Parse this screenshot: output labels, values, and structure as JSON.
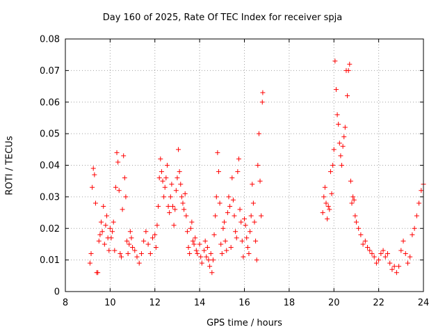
{
  "chart_data": {
    "type": "scatter",
    "title": "Day 160 of 2025, Rate Of TEC Index for receiver spja",
    "xlabel": "GPS time / hours",
    "ylabel": "ROTI / TECUs",
    "xlim": [
      8,
      24
    ],
    "ylim": [
      0,
      0.08
    ],
    "xticks": [
      8,
      10,
      12,
      14,
      16,
      18,
      20,
      22,
      24
    ],
    "yticks": [
      0,
      0.01,
      0.02,
      0.03,
      0.04,
      0.05,
      0.06,
      0.07,
      0.08
    ],
    "xtick_labels": [
      "8",
      "10",
      "12",
      "14",
      "16",
      "18",
      "20",
      "22",
      "24"
    ],
    "ytick_labels": [
      "0",
      "0.01",
      "0.02",
      "0.03",
      "0.04",
      "0.05",
      "0.06",
      "0.07",
      "0.08"
    ],
    "grid": true,
    "marker": "+",
    "color": "#ff0000",
    "series": [
      {
        "name": "ROTI",
        "points": [
          [
            9.1,
            0.009
          ],
          [
            9.15,
            0.012
          ],
          [
            9.2,
            0.033
          ],
          [
            9.25,
            0.039
          ],
          [
            9.3,
            0.037
          ],
          [
            9.35,
            0.028
          ],
          [
            9.4,
            0.006
          ],
          [
            9.45,
            0.006
          ],
          [
            9.5,
            0.016
          ],
          [
            9.55,
            0.018
          ],
          [
            9.6,
            0.022
          ],
          [
            9.65,
            0.019
          ],
          [
            9.7,
            0.027
          ],
          [
            9.75,
            0.015
          ],
          [
            9.8,
            0.021
          ],
          [
            9.85,
            0.024
          ],
          [
            9.9,
            0.017
          ],
          [
            9.95,
            0.013
          ],
          [
            10.0,
            0.02
          ],
          [
            10.05,
            0.017
          ],
          [
            10.1,
            0.019
          ],
          [
            10.15,
            0.022
          ],
          [
            10.2,
            0.013
          ],
          [
            10.25,
            0.033
          ],
          [
            10.3,
            0.044
          ],
          [
            10.35,
            0.041
          ],
          [
            10.4,
            0.032
          ],
          [
            10.45,
            0.012
          ],
          [
            10.5,
            0.011
          ],
          [
            10.55,
            0.026
          ],
          [
            10.6,
            0.043
          ],
          [
            10.65,
            0.036
          ],
          [
            10.7,
            0.03
          ],
          [
            10.75,
            0.016
          ],
          [
            10.8,
            0.012
          ],
          [
            10.85,
            0.015
          ],
          [
            10.9,
            0.019
          ],
          [
            10.95,
            0.017
          ],
          [
            11.0,
            0.014
          ],
          [
            11.1,
            0.013
          ],
          [
            11.2,
            0.011
          ],
          [
            11.3,
            0.009
          ],
          [
            11.4,
            0.012
          ],
          [
            11.5,
            0.016
          ],
          [
            11.6,
            0.019
          ],
          [
            11.7,
            0.015
          ],
          [
            11.8,
            0.012
          ],
          [
            11.9,
            0.017
          ],
          [
            12.0,
            0.018
          ],
          [
            12.05,
            0.014
          ],
          [
            12.1,
            0.021
          ],
          [
            12.15,
            0.027
          ],
          [
            12.2,
            0.036
          ],
          [
            12.25,
            0.042
          ],
          [
            12.3,
            0.038
          ],
          [
            12.35,
            0.035
          ],
          [
            12.4,
            0.03
          ],
          [
            12.45,
            0.033
          ],
          [
            12.5,
            0.036
          ],
          [
            12.55,
            0.04
          ],
          [
            12.6,
            0.027
          ],
          [
            12.65,
            0.025
          ],
          [
            12.7,
            0.03
          ],
          [
            12.75,
            0.034
          ],
          [
            12.8,
            0.027
          ],
          [
            12.85,
            0.021
          ],
          [
            12.9,
            0.026
          ],
          [
            12.95,
            0.032
          ],
          [
            13.0,
            0.036
          ],
          [
            13.05,
            0.045
          ],
          [
            13.1,
            0.038
          ],
          [
            13.15,
            0.034
          ],
          [
            13.2,
            0.03
          ],
          [
            13.25,
            0.028
          ],
          [
            13.3,
            0.026
          ],
          [
            13.35,
            0.031
          ],
          [
            13.4,
            0.024
          ],
          [
            13.45,
            0.019
          ],
          [
            13.5,
            0.014
          ],
          [
            13.55,
            0.012
          ],
          [
            13.6,
            0.02
          ],
          [
            13.65,
            0.022
          ],
          [
            13.7,
            0.016
          ],
          [
            13.75,
            0.015
          ],
          [
            13.8,
            0.017
          ],
          [
            13.85,
            0.013
          ],
          [
            13.9,
            0.012
          ],
          [
            14.0,
            0.015
          ],
          [
            14.05,
            0.011
          ],
          [
            14.1,
            0.009
          ],
          [
            14.2,
            0.013
          ],
          [
            14.25,
            0.016
          ],
          [
            14.3,
            0.011
          ],
          [
            14.35,
            0.014
          ],
          [
            14.4,
            0.01
          ],
          [
            14.45,
            0.008
          ],
          [
            14.5,
            0.012
          ],
          [
            14.55,
            0.006
          ],
          [
            14.6,
            0.01
          ],
          [
            14.65,
            0.018
          ],
          [
            14.7,
            0.024
          ],
          [
            14.75,
            0.03
          ],
          [
            14.8,
            0.044
          ],
          [
            14.85,
            0.038
          ],
          [
            14.9,
            0.028
          ],
          [
            14.95,
            0.015
          ],
          [
            15.0,
            0.012
          ],
          [
            15.05,
            0.02
          ],
          [
            15.1,
            0.022
          ],
          [
            15.15,
            0.016
          ],
          [
            15.2,
            0.013
          ],
          [
            15.25,
            0.025
          ],
          [
            15.3,
            0.03
          ],
          [
            15.35,
            0.027
          ],
          [
            15.4,
            0.014
          ],
          [
            15.45,
            0.036
          ],
          [
            15.5,
            0.029
          ],
          [
            15.55,
            0.024
          ],
          [
            15.6,
            0.019
          ],
          [
            15.65,
            0.017
          ],
          [
            15.7,
            0.038
          ],
          [
            15.75,
            0.042
          ],
          [
            15.8,
            0.026
          ],
          [
            15.85,
            0.022
          ],
          [
            15.9,
            0.016
          ],
          [
            15.95,
            0.011
          ],
          [
            16.0,
            0.023
          ],
          [
            16.05,
            0.021
          ],
          [
            16.1,
            0.017
          ],
          [
            16.15,
            0.014
          ],
          [
            16.2,
            0.012
          ],
          [
            16.25,
            0.019
          ],
          [
            16.3,
            0.024
          ],
          [
            16.35,
            0.034
          ],
          [
            16.4,
            0.028
          ],
          [
            16.45,
            0.022
          ],
          [
            16.5,
            0.016
          ],
          [
            16.55,
            0.01
          ],
          [
            16.6,
            0.04
          ],
          [
            16.65,
            0.05
          ],
          [
            16.7,
            0.035
          ],
          [
            16.75,
            0.024
          ],
          [
            16.8,
            0.06
          ],
          [
            16.82,
            0.063
          ],
          [
            19.5,
            0.025
          ],
          [
            19.55,
            0.03
          ],
          [
            19.6,
            0.033
          ],
          [
            19.65,
            0.028
          ],
          [
            19.7,
            0.023
          ],
          [
            19.75,
            0.027
          ],
          [
            19.8,
            0.026
          ],
          [
            19.85,
            0.038
          ],
          [
            19.9,
            0.031
          ],
          [
            19.95,
            0.04
          ],
          [
            20.0,
            0.045
          ],
          [
            20.05,
            0.073
          ],
          [
            20.1,
            0.064
          ],
          [
            20.15,
            0.056
          ],
          [
            20.2,
            0.053
          ],
          [
            20.25,
            0.047
          ],
          [
            20.3,
            0.043
          ],
          [
            20.35,
            0.04
          ],
          [
            20.4,
            0.046
          ],
          [
            20.45,
            0.049
          ],
          [
            20.5,
            0.052
          ],
          [
            20.55,
            0.07
          ],
          [
            20.6,
            0.062
          ],
          [
            20.65,
            0.07
          ],
          [
            20.7,
            0.072
          ],
          [
            20.75,
            0.035
          ],
          [
            20.8,
            0.028
          ],
          [
            20.85,
            0.03
          ],
          [
            20.9,
            0.029
          ],
          [
            20.95,
            0.024
          ],
          [
            21.0,
            0.022
          ],
          [
            21.1,
            0.02
          ],
          [
            21.2,
            0.018
          ],
          [
            21.3,
            0.015
          ],
          [
            21.4,
            0.016
          ],
          [
            21.5,
            0.014
          ],
          [
            21.6,
            0.013
          ],
          [
            21.7,
            0.012
          ],
          [
            21.8,
            0.011
          ],
          [
            21.9,
            0.009
          ],
          [
            22.0,
            0.01
          ],
          [
            22.1,
            0.012
          ],
          [
            22.2,
            0.013
          ],
          [
            22.3,
            0.011
          ],
          [
            22.4,
            0.012
          ],
          [
            22.5,
            0.009
          ],
          [
            22.6,
            0.007
          ],
          [
            22.7,
            0.008
          ],
          [
            22.8,
            0.006
          ],
          [
            22.9,
            0.008
          ],
          [
            23.0,
            0.013
          ],
          [
            23.1,
            0.016
          ],
          [
            23.2,
            0.012
          ],
          [
            23.3,
            0.009
          ],
          [
            23.4,
            0.011
          ],
          [
            23.5,
            0.018
          ],
          [
            23.6,
            0.02
          ],
          [
            23.7,
            0.024
          ],
          [
            23.8,
            0.028
          ],
          [
            23.9,
            0.032
          ],
          [
            24.0,
            0.034
          ]
        ]
      }
    ]
  }
}
